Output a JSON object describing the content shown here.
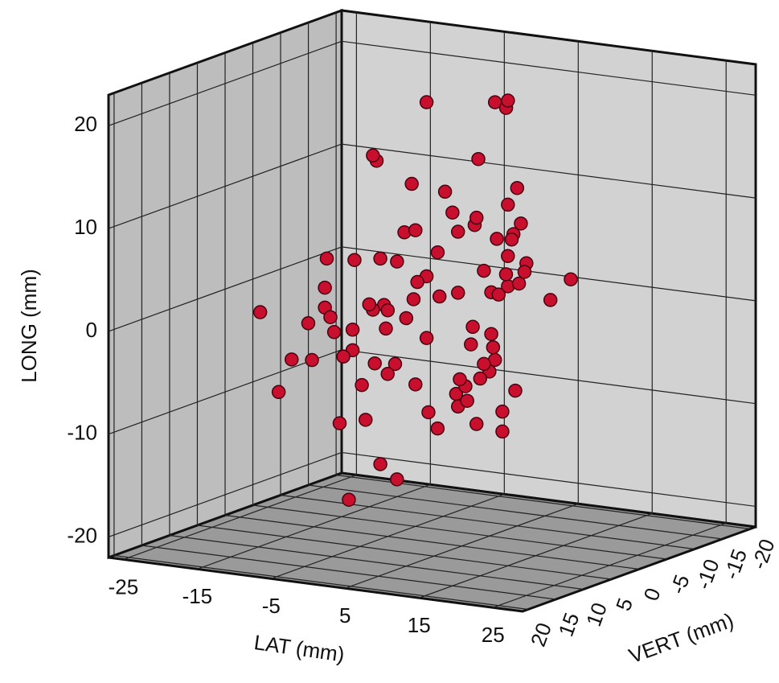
{
  "chart_data": {
    "type": "scatter3d",
    "x_label": "LAT (mm)",
    "y_label": "VERT (mm)",
    "z_label": "LONG (mm)",
    "color": "#c8102e",
    "xlim": [
      -27,
      29
    ],
    "xticks": [
      -25,
      -15,
      -5,
      5,
      15,
      25
    ],
    "ylim": [
      -21,
      21
    ],
    "yticks": [
      20,
      15,
      10,
      5,
      0,
      -5,
      -10,
      -15,
      -20
    ],
    "zlim": [
      -22,
      23
    ],
    "zticks": [
      20,
      10,
      0,
      -10,
      -20
    ],
    "grid": true,
    "x": [
      2,
      -3,
      5,
      8,
      -6,
      1,
      0,
      4,
      -2,
      7,
      10,
      -8,
      3,
      -4,
      6,
      -1,
      9,
      -5,
      2,
      12,
      -10,
      0,
      5,
      -7,
      3,
      8,
      -3,
      1,
      -12,
      6,
      4,
      -2,
      11,
      -6,
      0,
      7,
      2,
      -9,
      5,
      -4,
      3,
      13,
      -1,
      6,
      -15,
      9,
      -3,
      2,
      -5,
      8,
      0,
      4,
      -8,
      1,
      10,
      -2,
      6,
      -20,
      3,
      -16,
      -14,
      7,
      -11,
      12,
      5,
      -6,
      2,
      15,
      -3,
      9,
      0,
      -9,
      4,
      11,
      -13,
      6,
      -1,
      8,
      3,
      -7,
      14,
      1,
      -4,
      5,
      10,
      -2,
      7,
      -18,
      2,
      16
    ],
    "y": [
      0,
      3,
      -4,
      2,
      5,
      -1,
      -6,
      7,
      -3,
      1,
      -5,
      4,
      -2,
      6,
      -7,
      2,
      0,
      -3,
      8,
      -1,
      3,
      -5,
      1,
      -8,
      6,
      -2,
      4,
      -6,
      2,
      -4,
      7,
      -3,
      0,
      5,
      -9,
      3,
      -1,
      6,
      -5,
      2,
      -2,
      4,
      8,
      -6,
      1,
      -3,
      5,
      -7,
      0,
      3,
      10,
      -4,
      2,
      -8,
      1,
      6,
      -2,
      3,
      -10,
      5,
      -1,
      7,
      -4,
      0,
      -6,
      9,
      -12,
      2,
      4,
      -3,
      5,
      -7,
      12,
      -2,
      3,
      -5,
      8,
      0,
      -11,
      6,
      -4,
      1,
      -6,
      9,
      -3,
      11,
      -8,
      0,
      -13,
      -5
    ],
    "z": [
      2,
      -1,
      4,
      0,
      -3,
      6,
      1,
      -5,
      3,
      -2,
      5,
      -4,
      8,
      -6,
      2,
      0,
      -1,
      7,
      -3,
      4,
      -2,
      9,
      -7,
      1,
      3,
      -4,
      6,
      -8,
      0,
      2,
      10,
      -3,
      5,
      -1,
      7,
      -5,
      12,
      3,
      -6,
      1,
      -9,
      4,
      2,
      -10,
      -2,
      6,
      -4,
      14,
      0,
      -7,
      3,
      -11,
      5,
      8,
      -2,
      16,
      -6,
      -1,
      -13,
      -8,
      4,
      -9,
      -12,
      9,
      20,
      1,
      18,
      6,
      -14,
      11,
      -15,
      3,
      -3,
      13,
      -5,
      7,
      17,
      -4,
      19,
      -10,
      2,
      21,
      -11,
      15,
      -7,
      -16,
      8,
      -6,
      5,
      4
    ]
  }
}
